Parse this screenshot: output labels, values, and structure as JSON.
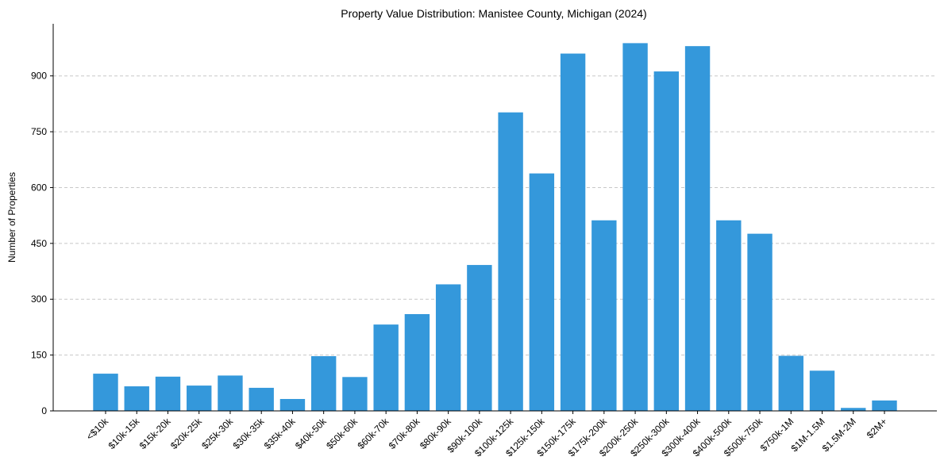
{
  "chart_data": {
    "type": "bar",
    "title": "Property Value Distribution: Manistee County, Michigan (2024)",
    "xlabel": "",
    "ylabel": "Number of Properties",
    "ylim": [
      0,
      1040
    ],
    "yticks": [
      0,
      150,
      300,
      450,
      600,
      750,
      900
    ],
    "grid": "y-dashed",
    "bar_color": "#3498db",
    "categories": [
      "<$10k",
      "$10k-15k",
      "$15k-20k",
      "$20k-25k",
      "$25k-30k",
      "$30k-35k",
      "$35k-40k",
      "$40k-50k",
      "$50k-60k",
      "$60k-70k",
      "$70k-80k",
      "$80k-90k",
      "$90k-100k",
      "$100k-125k",
      "$125k-150k",
      "$150k-175k",
      "$175k-200k",
      "$200k-250k",
      "$250k-300k",
      "$300k-400k",
      "$400k-500k",
      "$500k-750k",
      "$750k-1M",
      "$1M-1.5M",
      "$1.5M-2M",
      "$2M+"
    ],
    "values": [
      100,
      66,
      92,
      68,
      95,
      62,
      32,
      147,
      91,
      232,
      260,
      340,
      392,
      802,
      638,
      960,
      512,
      988,
      912,
      980,
      512,
      476,
      148,
      108,
      8,
      28
    ]
  }
}
